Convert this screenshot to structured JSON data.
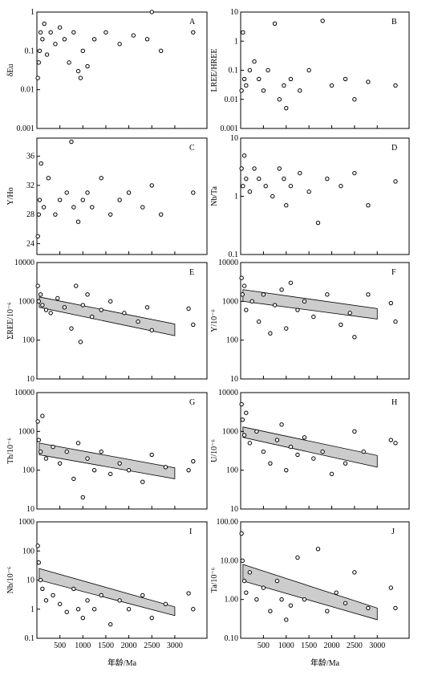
{
  "chart_data": [
    {
      "type": "scatter",
      "title": "A",
      "ylabel": "δEu",
      "ylog": true,
      "ylim": [
        0.001,
        1
      ],
      "yticks": [
        0.001,
        0.01,
        0.1,
        1
      ],
      "xlim": [
        0,
        3700
      ],
      "xticks": [
        500,
        1000,
        1500,
        2000,
        2500,
        3000
      ],
      "color": "#000000",
      "x": [
        20,
        40,
        60,
        80,
        120,
        160,
        220,
        300,
        400,
        500,
        600,
        700,
        800,
        900,
        950,
        1000,
        1100,
        1250,
        1500,
        1800,
        2100,
        2400,
        2500,
        2700,
        3400
      ],
      "y": [
        0.02,
        0.05,
        0.1,
        0.3,
        0.2,
        0.5,
        0.08,
        0.3,
        0.15,
        0.4,
        0.2,
        0.05,
        0.3,
        0.03,
        0.02,
        0.1,
        0.04,
        0.2,
        0.3,
        0.15,
        0.25,
        0.2,
        1,
        0.1,
        0.3
      ]
    },
    {
      "type": "scatter",
      "title": "B",
      "ylabel": "LREE/HREE",
      "ylog": true,
      "ylim": [
        0.001,
        10
      ],
      "yticks": [
        0.001,
        0.01,
        0.1,
        1,
        10
      ],
      "xlim": [
        0,
        3700
      ],
      "xticks": [
        500,
        1000,
        1500,
        2000,
        2500,
        3000
      ],
      "color": "#000000",
      "x": [
        20,
        50,
        80,
        120,
        200,
        300,
        400,
        500,
        600,
        750,
        850,
        950,
        1000,
        1100,
        1300,
        1500,
        1800,
        2000,
        2300,
        2500,
        2800,
        3400
      ],
      "y": [
        0.02,
        2,
        0.05,
        0.03,
        0.1,
        0.2,
        0.05,
        0.02,
        0.1,
        4,
        0.01,
        0.03,
        0.005,
        0.05,
        0.02,
        0.1,
        5,
        0.03,
        0.05,
        0.01,
        0.04,
        0.03
      ]
    },
    {
      "type": "scatter",
      "title": "C",
      "ylabel": "Y/Ho",
      "ylog": false,
      "ylim": [
        22.5,
        38.5
      ],
      "yticks": [
        24,
        28,
        32,
        36
      ],
      "xlim": [
        0,
        3700
      ],
      "xticks": [
        500,
        1000,
        1500,
        2000,
        2500,
        3000
      ],
      "color": "#000000",
      "x": [
        20,
        40,
        60,
        90,
        150,
        250,
        400,
        500,
        650,
        750,
        800,
        900,
        1000,
        1100,
        1200,
        1400,
        1600,
        1800,
        2000,
        2300,
        2500,
        2700,
        3400
      ],
      "y": [
        25,
        28,
        30,
        35,
        29,
        33,
        28,
        30,
        31,
        38,
        29,
        27,
        30,
        31,
        29,
        33,
        28,
        30,
        31,
        29,
        32,
        28,
        31
      ]
    },
    {
      "type": "scatter",
      "title": "D",
      "ylabel": "Nb/Ta",
      "ylog": true,
      "ylim": [
        0.1,
        10
      ],
      "yticks": [
        0.1,
        1,
        10
      ],
      "xlim": [
        0,
        3700
      ],
      "xticks": [
        500,
        1000,
        1500,
        2000,
        2500,
        3000
      ],
      "color": "#000000",
      "x": [
        20,
        50,
        80,
        120,
        200,
        300,
        400,
        550,
        700,
        850,
        950,
        1000,
        1100,
        1300,
        1500,
        1700,
        1900,
        2200,
        2500,
        2800,
        3400
      ],
      "y": [
        3,
        1.5,
        5,
        2,
        1.2,
        3,
        2,
        1.5,
        1,
        3,
        2,
        0.7,
        1.5,
        2.5,
        1.2,
        0.35,
        2,
        1.5,
        2.5,
        0.7,
        1.8
      ]
    },
    {
      "type": "scatter",
      "title": "E",
      "ylabel": "ΣREE/10⁻⁶",
      "ylog": true,
      "ylim": [
        10,
        10000
      ],
      "yticks": [
        10,
        100,
        1000,
        10000
      ],
      "xlim": [
        0,
        3700
      ],
      "xticks": [
        500,
        1000,
        1500,
        2000,
        2500,
        3000
      ],
      "color": "#000000",
      "band": {
        "x": [
          50,
          3000
        ],
        "lower": [
          700,
          130
        ],
        "upper": [
          1300,
          260
        ]
      },
      "x": [
        20,
        40,
        80,
        120,
        200,
        300,
        450,
        600,
        750,
        850,
        950,
        1000,
        1100,
        1200,
        1400,
        1600,
        1900,
        2200,
        2400,
        2500,
        3300,
        3400
      ],
      "y": [
        2500,
        1000,
        1500,
        800,
        600,
        500,
        1200,
        700,
        200,
        2500,
        90,
        800,
        1500,
        400,
        600,
        1000,
        500,
        300,
        700,
        180,
        650,
        250
      ]
    },
    {
      "type": "scatter",
      "title": "F",
      "ylabel": "Y/10⁻⁶",
      "ylog": true,
      "ylim": [
        10,
        10000
      ],
      "yticks": [
        10,
        100,
        1000,
        10000
      ],
      "xlim": [
        0,
        3700
      ],
      "xticks": [
        500,
        1000,
        1500,
        2000,
        2500,
        3000
      ],
      "color": "#000000",
      "band": {
        "x": [
          50,
          3000
        ],
        "lower": [
          1000,
          350
        ],
        "upper": [
          2000,
          650
        ]
      },
      "x": [
        20,
        40,
        80,
        120,
        250,
        400,
        500,
        650,
        750,
        900,
        1000,
        1100,
        1250,
        1400,
        1600,
        1900,
        2200,
        2400,
        2500,
        2800,
        3300,
        3400
      ],
      "y": [
        4000,
        1500,
        2500,
        600,
        1000,
        300,
        1500,
        150,
        800,
        2000,
        200,
        3000,
        600,
        1000,
        400,
        1500,
        250,
        500,
        120,
        1500,
        900,
        300
      ]
    },
    {
      "type": "scatter",
      "title": "G",
      "ylabel": "Th/10⁻⁶",
      "ylog": true,
      "ylim": [
        10,
        10000
      ],
      "yticks": [
        10,
        100,
        1000,
        10000
      ],
      "xlim": [
        0,
        3700
      ],
      "xticks": [
        500,
        1000,
        1500,
        2000,
        2500,
        3000
      ],
      "color": "#000000",
      "band": {
        "x": [
          50,
          3000
        ],
        "lower": [
          250,
          60
        ],
        "upper": [
          500,
          115
        ]
      },
      "x": [
        20,
        40,
        80,
        120,
        200,
        350,
        500,
        650,
        800,
        900,
        1000,
        1100,
        1250,
        1400,
        1600,
        1800,
        2000,
        2300,
        2500,
        2800,
        3300,
        3400
      ],
      "y": [
        1800,
        600,
        300,
        2500,
        200,
        400,
        150,
        300,
        60,
        500,
        20,
        200,
        100,
        300,
        80,
        150,
        100,
        50,
        250,
        120,
        100,
        170
      ]
    },
    {
      "type": "scatter",
      "title": "H",
      "ylabel": "U/10⁻⁶",
      "ylog": true,
      "ylim": [
        10,
        10000
      ],
      "yticks": [
        10,
        100,
        1000,
        10000
      ],
      "xlim": [
        0,
        3700
      ],
      "xticks": [
        500,
        1000,
        1500,
        2000,
        2500,
        3000
      ],
      "color": "#000000",
      "band": {
        "x": [
          50,
          3000
        ],
        "lower": [
          700,
          120
        ],
        "upper": [
          1300,
          240
        ]
      },
      "x": [
        20,
        40,
        80,
        120,
        200,
        350,
        500,
        650,
        800,
        900,
        1000,
        1100,
        1250,
        1400,
        1600,
        1800,
        2000,
        2300,
        2500,
        2700,
        3300,
        3400
      ],
      "y": [
        5000,
        2000,
        800,
        3000,
        500,
        1000,
        300,
        150,
        600,
        1500,
        100,
        400,
        250,
        700,
        200,
        300,
        80,
        150,
        1000,
        300,
        600,
        500
      ]
    },
    {
      "type": "scatter",
      "title": "I",
      "ylabel": "Nb/10⁻⁶",
      "ylog": true,
      "ylim": [
        0.1,
        1000
      ],
      "yticks": [
        0.1,
        1,
        10,
        100,
        1000
      ],
      "xlim": [
        0,
        3700
      ],
      "xticks": [
        500,
        1000,
        1500,
        2000,
        2500,
        3000
      ],
      "color": "#000000",
      "band": {
        "x": [
          50,
          3000
        ],
        "lower": [
          10,
          0.6
        ],
        "upper": [
          25,
          1.2
        ]
      },
      "x": [
        20,
        40,
        80,
        120,
        200,
        350,
        500,
        650,
        800,
        900,
        1000,
        1100,
        1250,
        1400,
        1600,
        1800,
        2000,
        2300,
        2500,
        2800,
        3300,
        3400
      ],
      "y": [
        150,
        40,
        10,
        5,
        2,
        3,
        1.5,
        0.8,
        5,
        1,
        0.5,
        2,
        1,
        3,
        0.3,
        2,
        1,
        3,
        0.5,
        1.5,
        3.5,
        1
      ]
    },
    {
      "type": "scatter",
      "title": "J",
      "ylabel": "Ta/10⁻⁶",
      "ylog": true,
      "ylim": [
        0.1,
        100
      ],
      "yticks": [
        {
          "value": 0.1,
          "label": "0.10"
        },
        {
          "value": 1,
          "label": "1.00"
        },
        {
          "value": 10,
          "label": "10.00"
        },
        {
          "value": 100,
          "label": "100.00"
        }
      ],
      "xlim": [
        0,
        3700
      ],
      "xticks": [
        500,
        1000,
        1500,
        2000,
        2500,
        3000
      ],
      "color": "#000000",
      "band": {
        "x": [
          50,
          3000
        ],
        "lower": [
          3,
          0.3
        ],
        "upper": [
          8,
          0.6
        ]
      },
      "x": [
        20,
        40,
        80,
        120,
        200,
        350,
        500,
        650,
        800,
        900,
        1000,
        1100,
        1250,
        1400,
        1700,
        1900,
        2100,
        2300,
        2500,
        2800,
        3300,
        3400
      ],
      "y": [
        50,
        10,
        3,
        1.5,
        5,
        1,
        2,
        0.5,
        3,
        1,
        0.3,
        0.7,
        12,
        1,
        20,
        0.5,
        1.5,
        0.8,
        5,
        0.6,
        2,
        0.6
      ],
      "xlabel": "年龄/Ma"
    }
  ]
}
